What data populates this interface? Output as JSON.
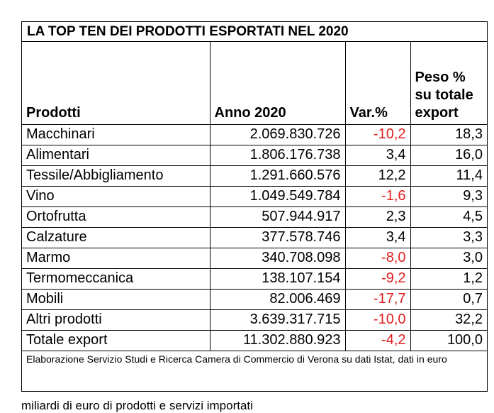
{
  "title": "LA TOP TEN DEI PRODOTTI ESPORTATI NEL 2020",
  "headers": {
    "prodotti": "Prodotti",
    "anno": "Anno 2020",
    "var": "Var.%",
    "peso": "Peso % su totale export"
  },
  "rows": [
    {
      "prodotto": "Macchinari",
      "anno": "2.069.830.726",
      "var": "-10,2",
      "peso": "18,3"
    },
    {
      "prodotto": "Alimentari",
      "anno": "1.806.176.738",
      "var": "3,4",
      "peso": "16,0"
    },
    {
      "prodotto": "Tessile/Abbigliamento",
      "anno": "1.291.660.576",
      "var": "12,2",
      "peso": "11,4"
    },
    {
      "prodotto": "Vino",
      "anno": "1.049.549.784",
      "var": "-1,6",
      "peso": "9,3"
    },
    {
      "prodotto": "Ortofrutta",
      "anno": "507.944.917",
      "var": "2,3",
      "peso": "4,5"
    },
    {
      "prodotto": "Calzature",
      "anno": "377.578.746",
      "var": "3,4",
      "peso": "3,3"
    },
    {
      "prodotto": "Marmo",
      "anno": "340.708.098",
      "var": "-8,0",
      "peso": "3,0"
    },
    {
      "prodotto": "Termomeccanica",
      "anno": "138.107.154",
      "var": "-9,2",
      "peso": "1,2"
    },
    {
      "prodotto": "Mobili",
      "anno": "82.006.469",
      "var": "-17,7",
      "peso": "0,7"
    },
    {
      "prodotto": "Altri prodotti",
      "anno": "3.639.317.715",
      "var": "-10,0",
      "peso": "32,2"
    },
    {
      "prodotto": "Totale export",
      "anno": "11.302.880.923",
      "var": "-4,2",
      "peso": "100,0"
    }
  ],
  "note": "Elaborazione Servizio Studi e Ricerca Camera di Commercio di Verona su dati Istat, dati in euro",
  "below_text": "miliardi di euro di prodotti e servizi importati",
  "colors": {
    "negative": "#e02020",
    "border": "#000000"
  }
}
